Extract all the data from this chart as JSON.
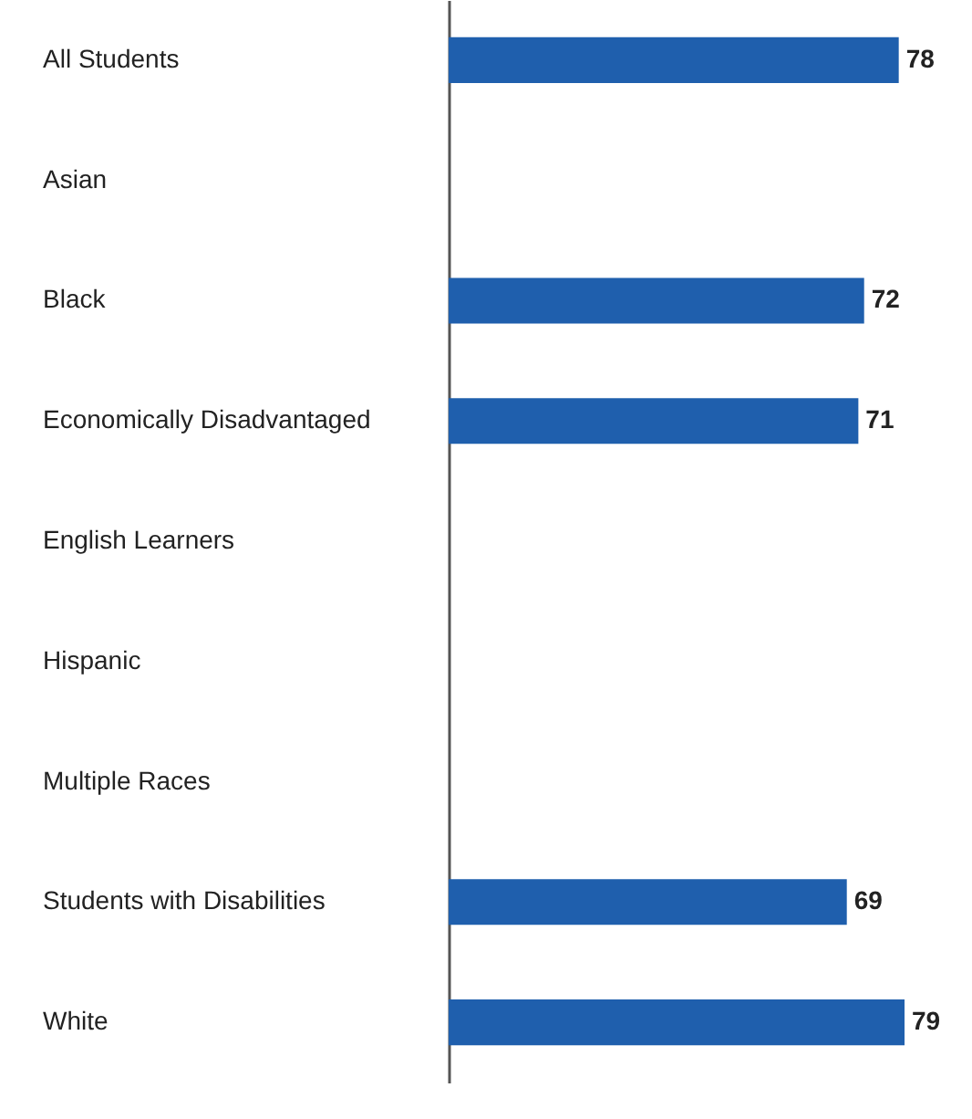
{
  "chart_data": {
    "type": "bar",
    "orientation": "horizontal",
    "categories": [
      "All Students",
      "Asian",
      "Black",
      "Economically Disadvantaged",
      "English Learners",
      "Hispanic",
      "Multiple Races",
      "Students with Disabilities",
      "White"
    ],
    "values": [
      78,
      null,
      72,
      71,
      null,
      null,
      null,
      69,
      79
    ],
    "color": "#1f5fad",
    "data_labels": true
  }
}
